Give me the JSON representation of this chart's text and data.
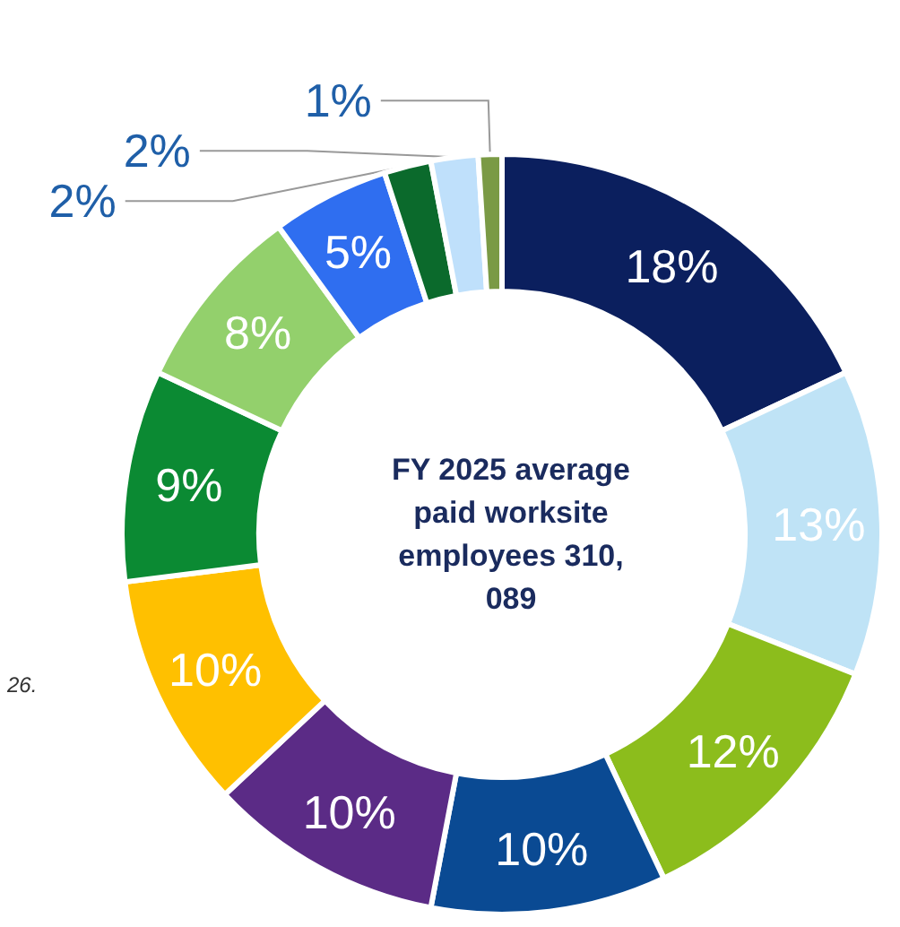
{
  "chart_data": {
    "type": "donut",
    "title": "FY 2025 average paid worksite employees 310,089",
    "categories": [
      null,
      null,
      null,
      null,
      null,
      null,
      null,
      null,
      null,
      null,
      null,
      null
    ],
    "values": [
      18,
      13,
      12,
      10,
      10,
      10,
      9,
      8,
      5,
      2,
      2,
      1
    ],
    "colors": [
      "#0b1f5e",
      "#bfe3f6",
      "#8cbd1c",
      "#0a4a93",
      "#5b2b86",
      "#ffc000",
      "#0b8a33",
      "#93d06c",
      "#2f6ef0",
      "#0b6a2c",
      "#bfe0fb",
      "#7a9a45"
    ],
    "value_labels": [
      "18%",
      "13%",
      "12%",
      "10%",
      "10%",
      "10%",
      "9%",
      "8%",
      "5%",
      "2%",
      "2%",
      "1%"
    ],
    "annotations": [
      "26."
    ]
  }
}
